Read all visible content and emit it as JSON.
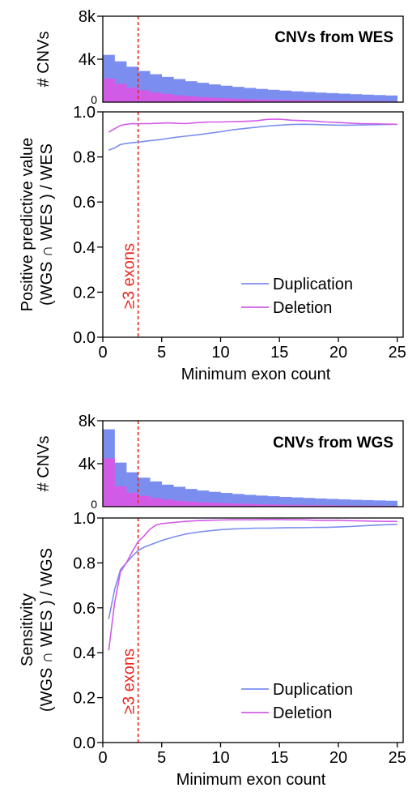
{
  "colors": {
    "duplication": "#7b8ef0",
    "deletion": "#d25be6",
    "threshold": "#e8281e",
    "axis": "#000000"
  },
  "threshold": {
    "x": 3,
    "label": "≥3 exons"
  },
  "chart_data": [
    {
      "type": "bar",
      "panel": "wes-hist",
      "title": "CNVs from WES",
      "ylabel": "# CNVs",
      "y_tick_labels": [
        "0",
        "4k",
        "8k"
      ],
      "ylim": [
        0,
        8000
      ],
      "x": [
        1,
        2,
        3,
        4,
        5,
        6,
        7,
        8,
        9,
        10,
        11,
        12,
        13,
        14,
        15,
        16,
        17,
        18,
        19,
        20,
        21,
        22,
        23,
        24,
        25
      ],
      "series": [
        {
          "values": [
            4400,
            3800,
            3300,
            2900,
            2600,
            2350,
            2150,
            1950,
            1800,
            1650,
            1530,
            1420,
            1320,
            1230,
            1150,
            1080,
            1010,
            950,
            890,
            840,
            790,
            740,
            700,
            660,
            620
          ]
        },
        {
          "values": [
            2200,
            1700,
            1350,
            1100,
            900,
            760,
            640,
            550,
            470,
            410,
            360,
            320,
            280,
            250,
            220,
            200,
            180,
            160,
            140,
            125,
            110,
            100,
            90,
            80,
            70
          ]
        }
      ]
    },
    {
      "type": "line",
      "panel": "wes-ppv",
      "ylabel": "Positive predictive value\n(WGS ∩ WES ) / WES",
      "xlabel": "Minimum exon count",
      "xlim": [
        0,
        25.5
      ],
      "ylim": [
        0,
        1
      ],
      "x_tick_labels": [
        "0",
        "5",
        "10",
        "15",
        "20",
        "25"
      ],
      "y_tick_labels": [
        "0.0",
        "0.2",
        "0.4",
        "0.6",
        "0.8",
        "1.0"
      ],
      "x": [
        0.5,
        1,
        1.5,
        2,
        2.5,
        3,
        3.5,
        4,
        4.5,
        5,
        5.5,
        6,
        7,
        8,
        9,
        10,
        11,
        12,
        13,
        14,
        15,
        16,
        17,
        18,
        19,
        20,
        21,
        22,
        23,
        24,
        25
      ],
      "series": [
        {
          "name": "Duplication",
          "values": [
            0.83,
            0.84,
            0.855,
            0.86,
            0.863,
            0.866,
            0.869,
            0.872,
            0.875,
            0.878,
            0.882,
            0.886,
            0.892,
            0.898,
            0.905,
            0.912,
            0.92,
            0.926,
            0.932,
            0.937,
            0.941,
            0.944,
            0.945,
            0.944,
            0.942,
            0.941,
            0.941,
            0.942,
            0.943,
            0.944,
            0.945
          ]
        },
        {
          "name": "Deletion",
          "values": [
            0.91,
            0.925,
            0.94,
            0.945,
            0.948,
            0.947,
            0.948,
            0.948,
            0.949,
            0.95,
            0.951,
            0.95,
            0.948,
            0.952,
            0.955,
            0.955,
            0.957,
            0.958,
            0.96,
            0.967,
            0.968,
            0.963,
            0.961,
            0.959,
            0.955,
            0.953,
            0.95,
            0.948,
            0.947,
            0.946,
            0.945
          ]
        }
      ]
    },
    {
      "type": "bar",
      "panel": "wgs-hist",
      "title": "CNVs from WGS",
      "ylabel": "# CNVs",
      "y_tick_labels": [
        "0",
        "4k",
        "8k"
      ],
      "ylim": [
        0,
        8000
      ],
      "x": [
        1,
        2,
        3,
        4,
        5,
        6,
        7,
        8,
        9,
        10,
        11,
        12,
        13,
        14,
        15,
        16,
        17,
        18,
        19,
        20,
        21,
        22,
        23,
        24,
        25
      ],
      "series": [
        {
          "values": [
            7200,
            4100,
            3200,
            2700,
            2350,
            2050,
            1850,
            1650,
            1500,
            1380,
            1280,
            1180,
            1100,
            1030,
            970,
            910,
            860,
            810,
            760,
            720,
            680,
            640,
            610,
            580,
            550
          ]
        },
        {
          "values": [
            4500,
            1900,
            1300,
            1000,
            800,
            660,
            550,
            470,
            410,
            360,
            320,
            280,
            250,
            225,
            200,
            180,
            165,
            150,
            135,
            122,
            110,
            100,
            92,
            84,
            76
          ]
        }
      ]
    },
    {
      "type": "line",
      "panel": "wgs-sens",
      "ylabel": "Sensitivity\n(WGS ∩ WES ) / WGS",
      "xlabel": "Minimum exon count",
      "xlim": [
        0,
        25.5
      ],
      "ylim": [
        0,
        1
      ],
      "x_tick_labels": [
        "0",
        "5",
        "10",
        "15",
        "20",
        "25"
      ],
      "y_tick_labels": [
        "0.0",
        "0.2",
        "0.4",
        "0.6",
        "0.8",
        "1.0"
      ],
      "x": [
        0.5,
        1,
        1.5,
        2,
        2.5,
        3,
        3.5,
        4,
        4.5,
        5,
        6,
        7,
        8,
        9,
        10,
        11,
        12,
        13,
        14,
        15,
        16,
        17,
        18,
        19,
        20,
        21,
        22,
        23,
        24,
        25
      ],
      "series": [
        {
          "name": "Duplication",
          "values": [
            0.55,
            0.68,
            0.77,
            0.8,
            0.83,
            0.855,
            0.87,
            0.88,
            0.89,
            0.9,
            0.915,
            0.928,
            0.937,
            0.943,
            0.948,
            0.951,
            0.953,
            0.955,
            0.955,
            0.956,
            0.957,
            0.957,
            0.958,
            0.958,
            0.96,
            0.962,
            0.965,
            0.968,
            0.97,
            0.972
          ]
        },
        {
          "name": "Deletion",
          "values": [
            0.41,
            0.62,
            0.76,
            0.8,
            0.85,
            0.895,
            0.92,
            0.95,
            0.968,
            0.975,
            0.98,
            0.985,
            0.988,
            0.99,
            0.991,
            0.992,
            0.992,
            0.992,
            0.993,
            0.993,
            0.992,
            0.992,
            0.99,
            0.99,
            0.99,
            0.988,
            0.987,
            0.986,
            0.985,
            0.985
          ]
        }
      ]
    }
  ]
}
